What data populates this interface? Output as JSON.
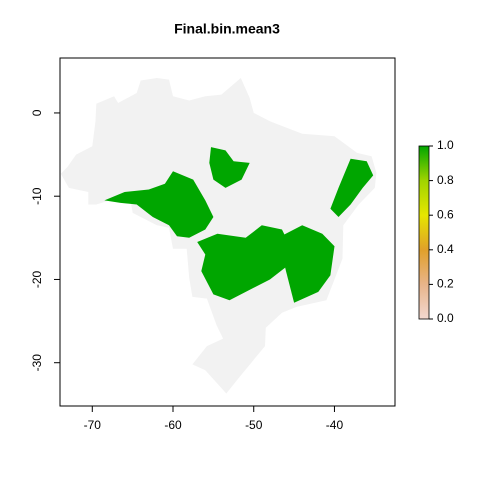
{
  "chart_data": {
    "type": "raster",
    "title": "Final.bin.mean3",
    "xlim": [
      -74,
      -32.5
    ],
    "ylim": [
      -35.2,
      6.6
    ],
    "xticks": [
      -70,
      -60,
      -50,
      -40
    ],
    "yticks": [
      0,
      -10,
      -20,
      -30
    ],
    "legend": {
      "lim": [
        0,
        1
      ],
      "ticks": [
        {
          "value": 0,
          "label": "0.0"
        },
        {
          "value": 0.2,
          "label": "0.2"
        },
        {
          "value": 0.4,
          "label": "0.4"
        },
        {
          "value": 0.6,
          "label": "0.6"
        },
        {
          "value": 0.8,
          "label": "0.8"
        },
        {
          "value": 1,
          "label": "1.0"
        }
      ],
      "colors": [
        "#f2d8d0",
        "#e8b48a",
        "#e0a02a",
        "#e6e600",
        "#a0d400",
        "#00a600"
      ]
    },
    "background_color": "#f2f2f2",
    "presence_color": "#00a600"
  }
}
